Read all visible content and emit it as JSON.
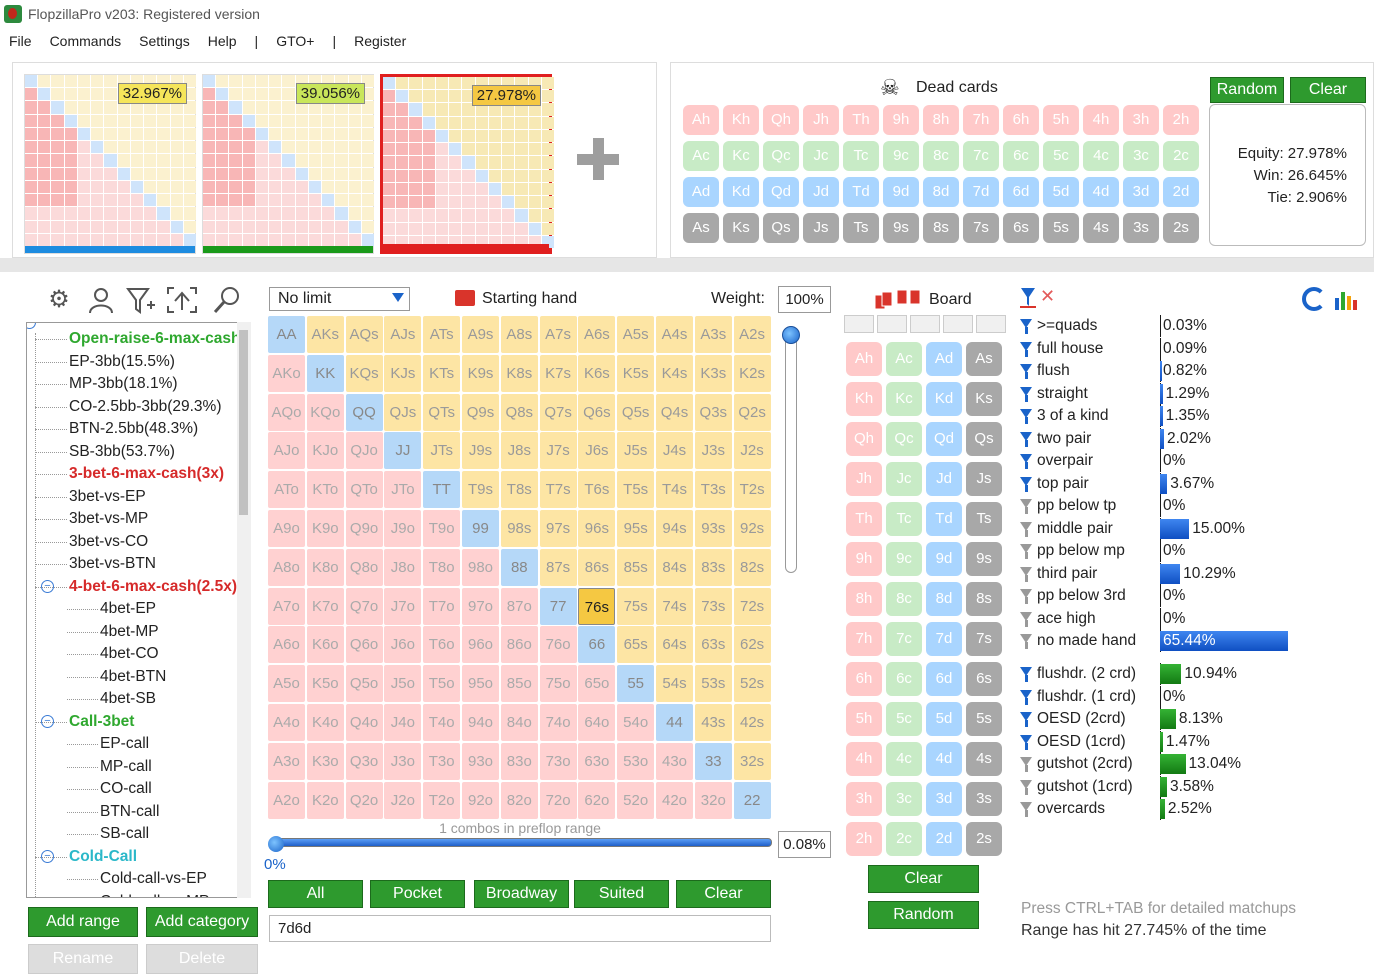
{
  "window": {
    "title": "FlopzillaPro v203: Registered version"
  },
  "menu": [
    "File",
    "Commands",
    "Settings",
    "Help",
    "|",
    "GTO+",
    "|",
    "Register"
  ],
  "range_slots": [
    {
      "pct": "32.967%",
      "bar_color": "#1e8ce0",
      "badge_color": "#f5e55a"
    },
    {
      "pct": "39.056%",
      "bar_color": "#1a9a1a",
      "badge_color": "#c9e65a"
    },
    {
      "pct": "27.978%",
      "bar_color": "#e01f1f",
      "badge_color": "#f5c842"
    }
  ],
  "plus_icon": "plus-icon",
  "dead_cards": {
    "title": "Dead cards",
    "icon": "skull-icon",
    "random_label": "Random",
    "clear_label": "Clear",
    "rows": [
      [
        "Ah",
        "Kh",
        "Qh",
        "Jh",
        "Th",
        "9h",
        "8h",
        "7h",
        "6h",
        "5h",
        "4h",
        "3h",
        "2h"
      ],
      [
        "Ac",
        "Kc",
        "Qc",
        "Jc",
        "Tc",
        "9c",
        "8c",
        "7c",
        "6c",
        "5c",
        "4c",
        "3c",
        "2c"
      ],
      [
        "Ad",
        "Kd",
        "Qd",
        "Jd",
        "Td",
        "9d",
        "8d",
        "7d",
        "6d",
        "5d",
        "4d",
        "3d",
        "2d"
      ],
      [
        "As",
        "Ks",
        "Qs",
        "Js",
        "Ts",
        "9s",
        "8s",
        "7s",
        "6s",
        "5s",
        "4s",
        "3s",
        "2s"
      ]
    ]
  },
  "equity": {
    "equity": "Equity: 27.978%",
    "win": "Win: 26.645%",
    "tie": "Tie: 2.906%"
  },
  "toolbar_icons": [
    "gear-icon",
    "user-icon",
    "filter-plus-icon",
    "export-icon",
    "search-icon"
  ],
  "tree": [
    {
      "label": "Open-raise-6-max-cash",
      "depth": 1,
      "color": "#2fa82f",
      "bold": true
    },
    {
      "label": "EP-3bb(15.5%)",
      "depth": 1
    },
    {
      "label": "MP-3bb(18.1%)",
      "depth": 1
    },
    {
      "label": "CO-2.5bb-3bb(29.3%)",
      "depth": 1
    },
    {
      "label": "BTN-2.5bb(48.3%)",
      "depth": 1
    },
    {
      "label": "SB-3bb(53.7%)",
      "depth": 1
    },
    {
      "label": "3-bet-6-max-cash(3x)",
      "depth": 1,
      "color": "#d62a2a",
      "bold": true
    },
    {
      "label": "3bet-vs-EP",
      "depth": 1
    },
    {
      "label": "3bet-vs-MP",
      "depth": 1
    },
    {
      "label": "3bet-vs-CO",
      "depth": 1
    },
    {
      "label": "3bet-vs-BTN",
      "depth": 1
    },
    {
      "label": "4-bet-6-max-cash(2.5x)",
      "depth": 1,
      "color": "#d62a2a",
      "bold": true,
      "collapse": true
    },
    {
      "label": "4bet-EP",
      "depth": 2
    },
    {
      "label": "4bet-MP",
      "depth": 2
    },
    {
      "label": "4bet-CO",
      "depth": 2
    },
    {
      "label": "4bet-BTN",
      "depth": 2
    },
    {
      "label": "4bet-SB",
      "depth": 2
    },
    {
      "label": "Call-3bet",
      "depth": 1,
      "color": "#2fa82f",
      "bold": true,
      "collapse": true
    },
    {
      "label": "EP-call",
      "depth": 2
    },
    {
      "label": "MP-call",
      "depth": 2
    },
    {
      "label": "CO-call",
      "depth": 2
    },
    {
      "label": "BTN-call",
      "depth": 2
    },
    {
      "label": "SB-call",
      "depth": 2
    },
    {
      "label": "Cold-Call",
      "depth": 1,
      "color": "#2bb8c9",
      "bold": true,
      "collapse": true
    },
    {
      "label": "Cold-call-vs-EP",
      "depth": 2
    },
    {
      "label": "Cold-call-vs-MP",
      "depth": 2
    }
  ],
  "left_buttons": {
    "add_range": "Add range",
    "add_category": "Add category",
    "rename": "Rename",
    "delete": "Delete"
  },
  "matrix": {
    "limit_value": "No limit",
    "title": "Starting hand",
    "weight_label": "Weight:",
    "weight_value": "100%",
    "selected_hand": "76s",
    "ranks": [
      "A",
      "K",
      "Q",
      "J",
      "T",
      "9",
      "8",
      "7",
      "6",
      "5",
      "4",
      "3",
      "2"
    ],
    "combos_text": "1 combos in preflop range",
    "slider_pct": "0%",
    "pct_box": "0.08%",
    "buttons": [
      "All",
      "Pocket",
      "Broadway",
      "Suited",
      "Clear"
    ],
    "hand_input": "7d6d"
  },
  "board": {
    "title": "Board",
    "rows": [
      [
        "Ah",
        "Ac",
        "Ad",
        "As"
      ],
      [
        "Kh",
        "Kc",
        "Kd",
        "Ks"
      ],
      [
        "Qh",
        "Qc",
        "Qd",
        "Qs"
      ],
      [
        "Jh",
        "Jc",
        "Jd",
        "Js"
      ],
      [
        "Th",
        "Tc",
        "Td",
        "Ts"
      ],
      [
        "9h",
        "9c",
        "9d",
        "9s"
      ],
      [
        "8h",
        "8c",
        "8d",
        "8s"
      ],
      [
        "7h",
        "7c",
        "7d",
        "7s"
      ],
      [
        "6h",
        "6c",
        "6d",
        "6s"
      ],
      [
        "5h",
        "5c",
        "5d",
        "5s"
      ],
      [
        "4h",
        "4c",
        "4d",
        "4s"
      ],
      [
        "3h",
        "3c",
        "3d",
        "3s"
      ],
      [
        "2h",
        "2c",
        "2d",
        "2s"
      ]
    ],
    "clear_label": "Clear",
    "random_label": "Random"
  },
  "stats": {
    "made_hands": [
      {
        "label": ">=quads",
        "value": "0.03%",
        "pct": 0.03,
        "active": true
      },
      {
        "label": "full house",
        "value": "0.09%",
        "pct": 0.09,
        "active": true
      },
      {
        "label": "flush",
        "value": "0.82%",
        "pct": 0.82,
        "active": true
      },
      {
        "label": "straight",
        "value": "1.29%",
        "pct": 1.29,
        "active": true
      },
      {
        "label": "3 of a kind",
        "value": "1.35%",
        "pct": 1.35,
        "active": true
      },
      {
        "label": "two pair",
        "value": "2.02%",
        "pct": 2.02,
        "active": true
      },
      {
        "label": "overpair",
        "value": "0%",
        "pct": 0,
        "active": true
      },
      {
        "label": "top pair",
        "value": "3.67%",
        "pct": 3.67,
        "active": true
      },
      {
        "label": "pp below tp",
        "value": "0%",
        "pct": 0,
        "active": false
      },
      {
        "label": "middle pair",
        "value": "15.00%",
        "pct": 15.0,
        "active": false
      },
      {
        "label": "pp below mp",
        "value": "0%",
        "pct": 0,
        "active": false
      },
      {
        "label": "third pair",
        "value": "10.29%",
        "pct": 10.29,
        "active": false
      },
      {
        "label": "pp below 3rd",
        "value": "0%",
        "pct": 0,
        "active": false
      },
      {
        "label": "ace high",
        "value": "0%",
        "pct": 0,
        "active": false
      },
      {
        "label": "no made hand",
        "value": "65.44%",
        "pct": 65.44,
        "active": false
      }
    ],
    "draws": [
      {
        "label": "flushdr. (2 crd)",
        "value": "10.94%",
        "pct": 10.94,
        "active": true
      },
      {
        "label": "flushdr. (1 crd)",
        "value": "0%",
        "pct": 0,
        "active": true
      },
      {
        "label": "OESD (2crd)",
        "value": "8.13%",
        "pct": 8.13,
        "active": true
      },
      {
        "label": "OESD (1crd)",
        "value": "1.47%",
        "pct": 1.47,
        "active": true
      },
      {
        "label": "gutshot (2crd)",
        "value": "13.04%",
        "pct": 13.04,
        "active": false
      },
      {
        "label": "gutshot (1crd)",
        "value": "3.58%",
        "pct": 3.58,
        "active": false
      },
      {
        "label": "overcards",
        "value": "2.52%",
        "pct": 2.52,
        "active": false
      }
    ],
    "ctrl_tab_text": "Press CTRL+TAB for detailed matchups",
    "range_hit_text": "Range has hit 27.745% of the time"
  }
}
